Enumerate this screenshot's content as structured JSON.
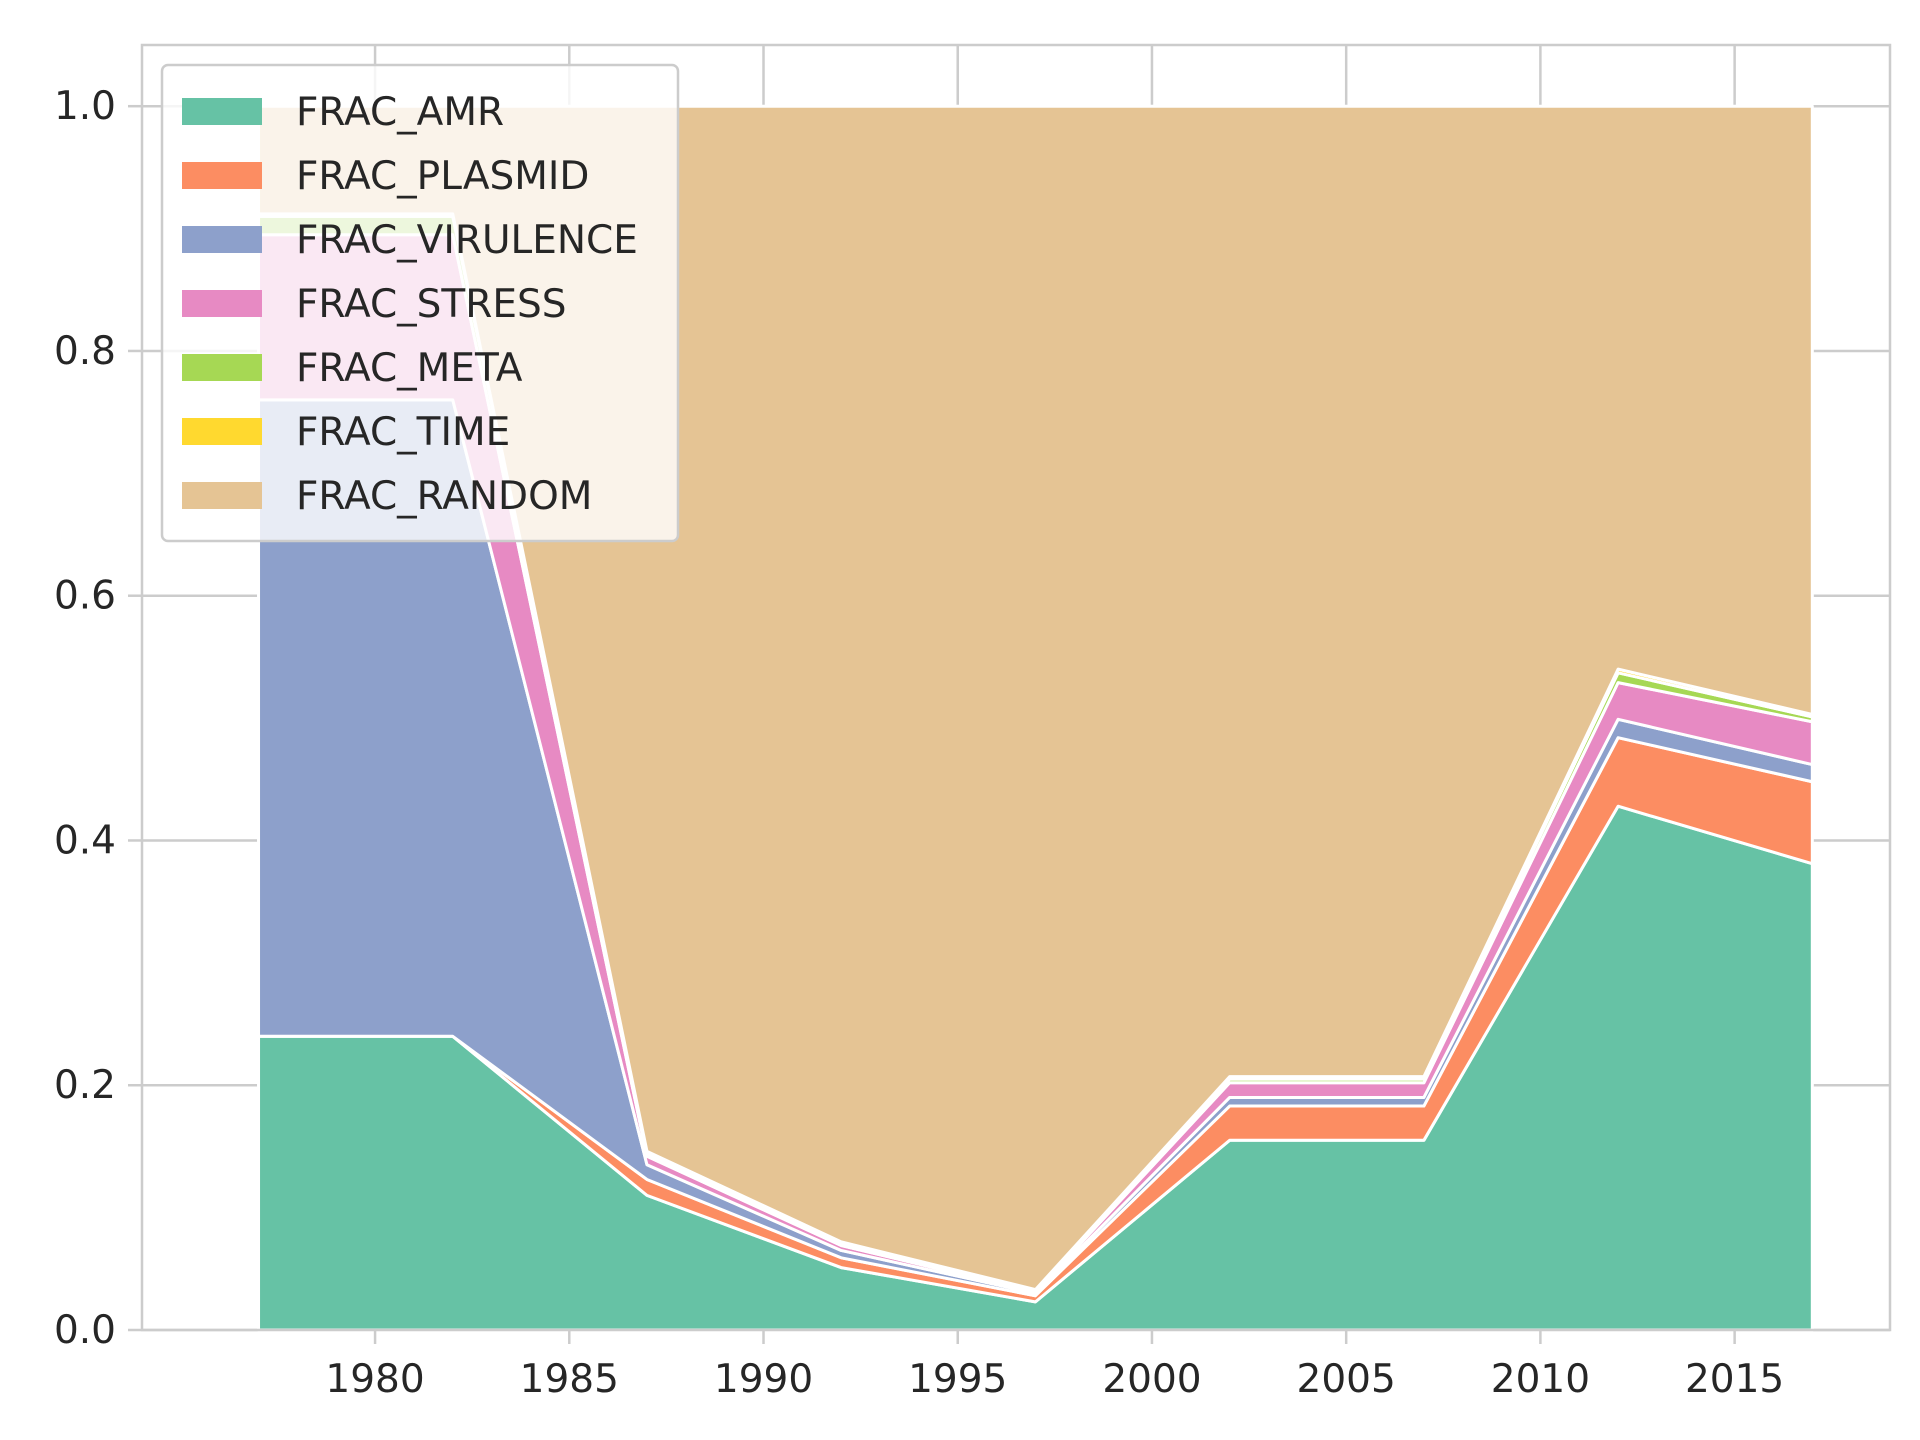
{
  "chart_data": {
    "type": "area",
    "stacked": true,
    "title": "",
    "xlabel": "",
    "ylabel": "",
    "x": [
      1977,
      1982,
      1987,
      1992,
      1997,
      2002,
      2007,
      2012,
      2017
    ],
    "xlim": [
      1974,
      2019
    ],
    "ylim": [
      0,
      1.05
    ],
    "xticks": [
      1980,
      1985,
      1990,
      1995,
      2000,
      2005,
      2010,
      2015
    ],
    "yticks": [
      "0.0",
      "0.2",
      "0.4",
      "0.6",
      "0.8",
      "1.0"
    ],
    "grid": true,
    "legend_position": "upper-left",
    "series": [
      {
        "name": "FRAC_AMR",
        "color": "#66c2a5",
        "values": [
          0.24,
          0.24,
          0.11,
          0.051,
          0.023,
          0.155,
          0.155,
          0.428,
          0.381
        ]
      },
      {
        "name": "FRAC_PLASMID",
        "color": "#fc8d62",
        "values": [
          0.0,
          0.0,
          0.013,
          0.008,
          0.005,
          0.028,
          0.028,
          0.056,
          0.067
        ]
      },
      {
        "name": "FRAC_VIRULENCE",
        "color": "#8da0cb",
        "values": [
          0.52,
          0.52,
          0.012,
          0.006,
          0.002,
          0.007,
          0.007,
          0.015,
          0.014
        ]
      },
      {
        "name": "FRAC_STRESS",
        "color": "#e78ac3",
        "values": [
          0.135,
          0.135,
          0.007,
          0.004,
          0.001,
          0.012,
          0.012,
          0.03,
          0.035
        ]
      },
      {
        "name": "FRAC_META",
        "color": "#a6d854",
        "values": [
          0.015,
          0.015,
          0.002,
          0.002,
          0.001,
          0.003,
          0.003,
          0.008,
          0.004
        ]
      },
      {
        "name": "FRAC_TIME",
        "color": "#ffd92f",
        "values": [
          0.002,
          0.002,
          0.002,
          0.001,
          0.001,
          0.002,
          0.002,
          0.003,
          0.002
        ]
      },
      {
        "name": "FRAC_RANDOM",
        "color": "#e5c494",
        "values": [
          0.088,
          0.088,
          0.854,
          0.928,
          0.967,
          0.793,
          0.793,
          0.46,
          0.497
        ]
      }
    ]
  }
}
